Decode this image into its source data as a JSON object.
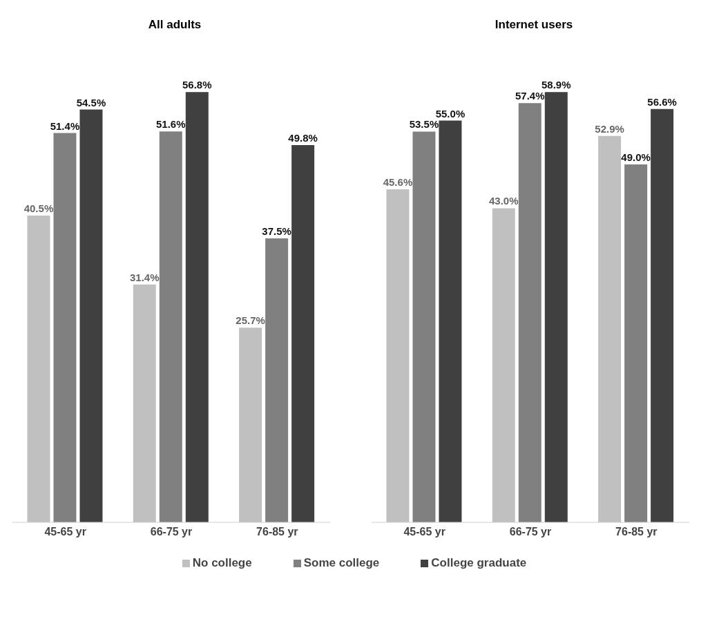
{
  "chart_data": [
    {
      "type": "bar",
      "title": "All adults",
      "categories": [
        "45-65 yr",
        "66-75 yr",
        "76-85 yr"
      ],
      "legend": "bottom",
      "series": [
        {
          "name": "No college",
          "color": "#c0c0c0",
          "values": [
            40.5,
            31.4,
            25.7
          ],
          "value_labels": [
            "40.5%",
            "31.4%",
            "25.7%"
          ]
        },
        {
          "name": "Some college",
          "color": "#808080",
          "values": [
            51.4,
            51.6,
            37.5
          ],
          "value_labels": [
            "51.4%",
            "51.6%",
            "37.5%"
          ]
        },
        {
          "name": "College graduate",
          "color": "#404040",
          "values": [
            54.5,
            56.8,
            49.8
          ],
          "value_labels": [
            "54.5%",
            "56.8%",
            "49.8%"
          ]
        }
      ]
    },
    {
      "type": "bar",
      "title": "Internet users",
      "categories": [
        "45-65 yr",
        "66-75 yr",
        "76-85 yr"
      ],
      "series": [
        {
          "color": "#c0c0c0",
          "values": [
            45.6,
            43.0,
            52.9
          ],
          "value_labels": [
            "45.6%",
            "43.0%",
            "52.9%"
          ]
        },
        {
          "color": "#808080",
          "values": [
            53.5,
            57.4,
            49.0
          ],
          "value_labels": [
            "53.5%",
            "57.4%",
            "49.0%"
          ]
        },
        {
          "color": "#404040",
          "values": [
            55.0,
            58.9,
            56.6
          ],
          "value_labels": [
            "55.0%",
            "58.9%",
            "56.6%"
          ]
        }
      ]
    }
  ]
}
